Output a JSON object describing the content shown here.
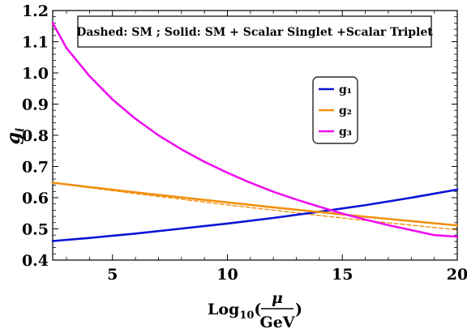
{
  "chart_data": {
    "type": "line",
    "annotation": "Dashed: SM  ;  Solid: SM + Scalar Singlet +Scalar Triplet",
    "xlabel": {
      "prefix": "Log",
      "sub": "10",
      "open": "(",
      "num": "μ",
      "den": "GeV",
      "close": ")"
    },
    "ylabel": {
      "main": "g",
      "sub": "i"
    },
    "xlim": [
      2.4,
      20
    ],
    "ylim": [
      0.4,
      1.2
    ],
    "xticks": [
      5,
      10,
      15,
      20
    ],
    "yticks": [
      0.4,
      0.5,
      0.6,
      0.7,
      0.8,
      0.9,
      1.0,
      1.1,
      1.2
    ],
    "ytick_labels": [
      "0.4",
      "0.5",
      "0.6",
      "0.7",
      "0.8",
      "0.9",
      "1.0",
      "1.1",
      "1.2"
    ],
    "legend_position": "center-right",
    "series": [
      {
        "name": "g₁",
        "color": "#0a14d6",
        "style": "solid",
        "x": [
          2.4,
          4,
          6,
          8,
          10,
          12,
          14,
          16,
          18,
          20
        ],
        "y": [
          0.461,
          0.471,
          0.485,
          0.501,
          0.517,
          0.535,
          0.555,
          0.576,
          0.6,
          0.626
        ]
      },
      {
        "name": "g₂",
        "color": "#f0900f",
        "style": "solid",
        "x": [
          2.4,
          4,
          6,
          8,
          10,
          12,
          14,
          16,
          18,
          20
        ],
        "y": [
          0.648,
          0.634,
          0.617,
          0.601,
          0.585,
          0.569,
          0.554,
          0.539,
          0.525,
          0.511
        ]
      },
      {
        "name": "g₃",
        "color": "#f00ff0",
        "style": "solid",
        "x": [
          2.4,
          3,
          4,
          5,
          6,
          7,
          8,
          9,
          10,
          11,
          12,
          13,
          14,
          15,
          16,
          17,
          18,
          19,
          20
        ],
        "y": [
          1.16,
          1.08,
          0.99,
          0.915,
          0.853,
          0.8,
          0.755,
          0.715,
          0.68,
          0.648,
          0.619,
          0.594,
          0.571,
          0.549,
          0.53,
          0.512,
          0.496,
          0.48,
          0.475
        ]
      },
      {
        "color": "#f0900f",
        "style": "dashed",
        "x": [
          2.4,
          4,
          6,
          8,
          10,
          12,
          14,
          16,
          18,
          20
        ],
        "y": [
          0.648,
          0.632,
          0.613,
          0.595,
          0.577,
          0.56,
          0.543,
          0.527,
          0.512,
          0.497
        ]
      },
      {
        "color": "#0a14d6",
        "style": "dashed",
        "x": [
          2.4,
          4,
          6,
          8,
          10,
          12,
          14,
          16,
          18,
          20
        ],
        "y": [
          0.461,
          0.471,
          0.485,
          0.501,
          0.517,
          0.535,
          0.555,
          0.576,
          0.6,
          0.626
        ]
      }
    ]
  }
}
